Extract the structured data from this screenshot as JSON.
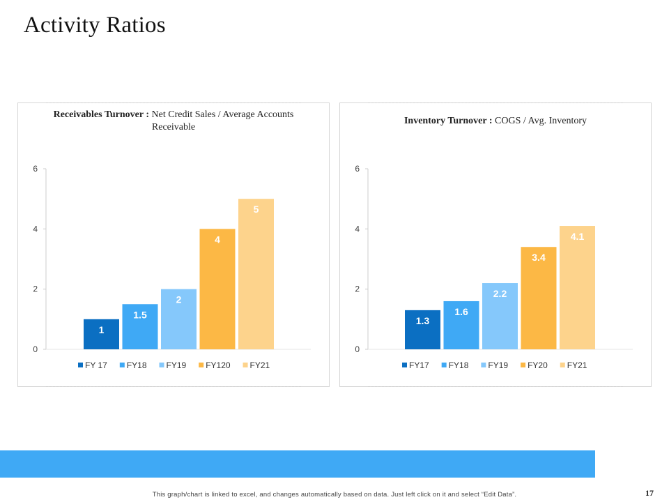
{
  "page": {
    "title": "Activity Ratios",
    "footer_note": "This graph/chart is linked to excel, and changes automatically based on data. Just left click on it and select “Edit Data”.",
    "page_number": "17"
  },
  "chart_data": [
    {
      "type": "bar",
      "title_bold": "Receivables Turnover :",
      "title_rest": " Net Credit Sales / Average Accounts Receivable",
      "categories": [
        "FY 17",
        "FY18",
        "FY19",
        "FY120",
        "FY21"
      ],
      "values": [
        1,
        1.5,
        2,
        4,
        5
      ],
      "data_labels": [
        "1",
        "1.5",
        "2",
        "4",
        "5"
      ],
      "colors": [
        "#0b6fc2",
        "#3fa9f5",
        "#85c8fb",
        "#fcb845",
        "#fdd38c"
      ],
      "ylim": [
        0,
        6
      ],
      "yticks": [
        "0",
        "2",
        "4",
        "6"
      ],
      "xlabel": "",
      "ylabel": "",
      "grid": false,
      "legend": "bottom"
    },
    {
      "type": "bar",
      "title_bold": "Inventory Turnover :",
      "title_rest": " COGS / Avg. Inventory",
      "categories": [
        "FY17",
        "FY18",
        "FY19",
        "FY20",
        "FY21"
      ],
      "values": [
        1.3,
        1.6,
        2.2,
        3.4,
        4.1
      ],
      "data_labels": [
        "1.3",
        "1.6",
        "2.2",
        "3.4",
        "4.1"
      ],
      "colors": [
        "#0b6fc2",
        "#3fa9f5",
        "#85c8fb",
        "#fcb845",
        "#fdd38c"
      ],
      "ylim": [
        0,
        6
      ],
      "yticks": [
        "0",
        "2",
        "4",
        "6"
      ],
      "xlabel": "",
      "ylabel": "",
      "grid": false,
      "legend": "bottom"
    }
  ]
}
